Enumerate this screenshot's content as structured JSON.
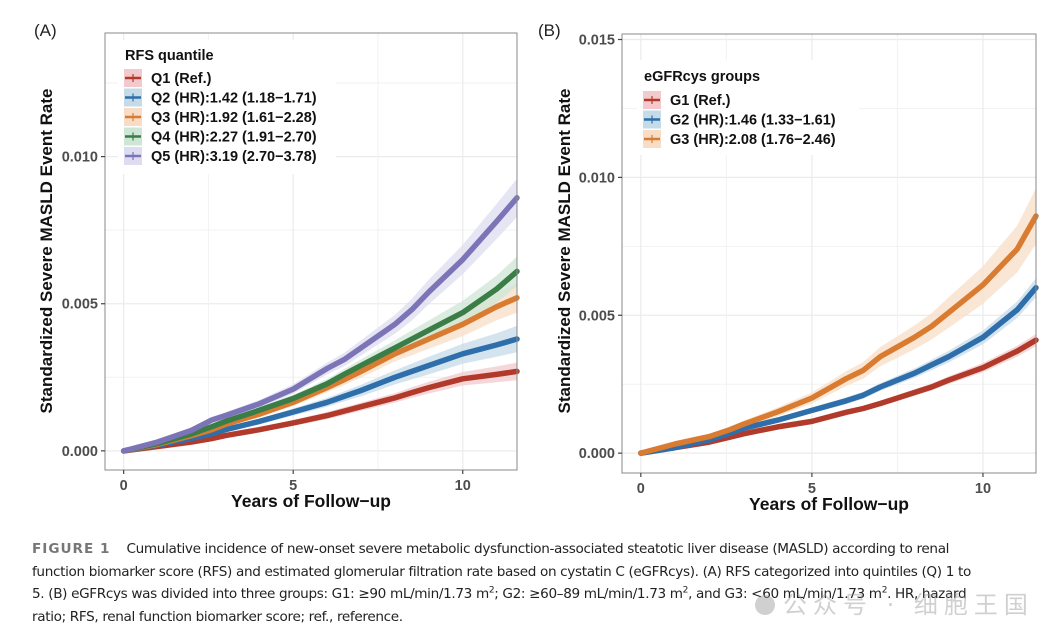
{
  "figure": {
    "caption": {
      "label": "FIGURE 1",
      "line1": "Cumulative incidence of new-onset severe metabolic dysfunction-associated steatotic liver disease (MASLD) according to renal",
      "line2": "function biomarker score (RFS) and estimated glomerular filtration rate based on cystatin C (eGFRcys). (A) RFS categorized into quintiles (Q) 1 to",
      "line3a": "5. (B) eGFRcys was divided into three groups: G1: ≥90 mL/min/1.73 m",
      "line3b": "; G2: ≥60–89 mL/min/1.73 m",
      "line3c": ", and G3: <60 mL/min/1.73 m",
      "line3d": ". HR, hazard",
      "sup": "2",
      "line4": "ratio; RFS, renal function biomarker score; ref., reference."
    },
    "watermark": "公众号 · 细胞王国"
  },
  "chart_data": [
    {
      "panel": "(A)",
      "type": "line",
      "title": "",
      "xlabel": "Years of Follow−up",
      "ylabel": "Standardized Severe MASLD Event Rate",
      "xlim": [
        -0.55,
        11.6
      ],
      "ylim": [
        -0.00065,
        0.0142
      ],
      "xticks": [
        0,
        5,
        10
      ],
      "xtick_labels": [
        "0",
        "5",
        "10"
      ],
      "yticks": [
        0.0,
        0.005,
        0.01
      ],
      "ytick_labels": [
        "0.000",
        "0.005",
        "0.010"
      ],
      "grid": true,
      "legend": {
        "title": "RFS quantile",
        "position": "top-left"
      },
      "x": [
        0,
        1,
        2,
        2.6,
        3,
        4,
        5,
        6,
        6.5,
        7,
        8,
        8.5,
        9,
        10,
        11,
        11.6
      ],
      "series": [
        {
          "name": "Q1 (Ref.)",
          "color": "#B23A2B",
          "band": "#F2C9CC",
          "values": [
            0,
            0.00015,
            0.0003,
            0.00042,
            0.00052,
            0.00072,
            0.00095,
            0.0012,
            0.00135,
            0.0015,
            0.0018,
            0.00198,
            0.00215,
            0.00245,
            0.0026,
            0.0027
          ],
          "ci_halfwidth": [
            0,
            3e-05,
            5e-05,
            6e-05,
            7e-05,
            9e-05,
            0.0001,
            0.00012,
            0.00013,
            0.00014,
            0.00016,
            0.00018,
            0.0002,
            0.00023,
            0.00027,
            0.0003
          ]
        },
        {
          "name": "Q2 (HR):1.42 (1.18−1.71)",
          "color": "#2E6EAA",
          "band": "#C6DBE8",
          "values": [
            0,
            0.0002,
            0.00042,
            0.00058,
            0.00072,
            0.001,
            0.00132,
            0.00165,
            0.00185,
            0.00205,
            0.0025,
            0.0027,
            0.0029,
            0.0033,
            0.0036,
            0.0038
          ],
          "ci_halfwidth": [
            0,
            4e-05,
            6e-05,
            7e-05,
            8e-05,
            0.0001,
            0.00012,
            0.00015,
            0.00017,
            0.0002,
            0.00024,
            0.00027,
            0.0003,
            0.00034,
            0.0004,
            0.00045
          ]
        },
        {
          "name": "Q3 (HR):1.92 (1.61−2.28)",
          "color": "#D97B30",
          "band": "#F8DDC6",
          "values": [
            0,
            0.00022,
            0.00052,
            0.00072,
            0.0009,
            0.00125,
            0.00165,
            0.00215,
            0.00242,
            0.0027,
            0.0033,
            0.00355,
            0.0038,
            0.0043,
            0.0049,
            0.0052
          ],
          "ci_halfwidth": [
            0,
            4e-05,
            6e-05,
            8e-05,
            9e-05,
            0.00011,
            0.00013,
            0.00016,
            0.00018,
            0.00021,
            0.00026,
            0.0003,
            0.00033,
            0.0004,
            0.00046,
            0.0005
          ]
        },
        {
          "name": "Q4 (HR):2.27 (1.91−2.70)",
          "color": "#3A7D46",
          "band": "#CDE6D6",
          "values": [
            0,
            0.00025,
            0.00058,
            0.00082,
            0.001,
            0.00138,
            0.00178,
            0.00228,
            0.0026,
            0.0029,
            0.0035,
            0.0038,
            0.0041,
            0.0047,
            0.0055,
            0.0061
          ],
          "ci_halfwidth": [
            0,
            4e-05,
            6e-05,
            8e-05,
            9e-05,
            0.00011,
            0.00013,
            0.00016,
            0.00018,
            0.00021,
            0.00026,
            0.0003,
            0.00033,
            0.0004,
            0.00046,
            0.0005
          ]
        },
        {
          "name": "Q5 (HR):3.19 (2.70−3.78)",
          "color": "#7B74B6",
          "band": "#DEDCF0",
          "values": [
            0,
            0.0003,
            0.0007,
            0.00105,
            0.0012,
            0.0016,
            0.0021,
            0.0028,
            0.0031,
            0.0035,
            0.0043,
            0.0048,
            0.0054,
            0.0065,
            0.0078,
            0.0086
          ],
          "ci_halfwidth": [
            0,
            5e-05,
            8e-05,
            0.0001,
            0.00011,
            0.00013,
            0.00016,
            0.0002,
            0.00023,
            0.00026,
            0.00032,
            0.00037,
            0.00042,
            0.0005,
            0.0006,
            0.00065
          ]
        }
      ]
    },
    {
      "panel": "(B)",
      "type": "line",
      "title": "",
      "xlabel": "Years of Follow−up",
      "ylabel": "Standardized Severe MASLD Event Rate",
      "xlim": [
        -0.55,
        11.55
      ],
      "ylim": [
        -0.00072,
        0.0152
      ],
      "xticks": [
        0,
        5,
        10
      ],
      "xtick_labels": [
        "0",
        "5",
        "10"
      ],
      "yticks": [
        0.0,
        0.005,
        0.01,
        0.015
      ],
      "ytick_labels": [
        "0.000",
        "0.005",
        "0.010",
        "0.015"
      ],
      "grid": true,
      "legend": {
        "title": "eGFRcys  groups",
        "position": "top-left"
      },
      "x": [
        0,
        1,
        2,
        2.6,
        3,
        4,
        5,
        6,
        6.5,
        7,
        8,
        8.5,
        9,
        10,
        11,
        11.55
      ],
      "series": [
        {
          "name": "G1 (Ref.)",
          "color": "#B23A2B",
          "band": "#F2C9CC",
          "values": [
            0,
            0.0002,
            0.0004,
            0.00058,
            0.0007,
            0.00095,
            0.00115,
            0.00148,
            0.00162,
            0.0018,
            0.0022,
            0.0024,
            0.00265,
            0.0031,
            0.0037,
            0.0041
          ],
          "ci_halfwidth": [
            0,
            3e-05,
            4e-05,
            5e-05,
            5e-05,
            6e-05,
            7e-05,
            8e-05,
            9e-05,
            0.0001,
            0.00012,
            0.00013,
            0.00014,
            0.00017,
            0.0002,
            0.00022
          ]
        },
        {
          "name": "G2 (HR):1.46 (1.33−1.61)",
          "color": "#2E6EAA",
          "band": "#C6DBE8",
          "values": [
            0,
            0.0002,
            0.00048,
            0.00072,
            0.0009,
            0.0012,
            0.00155,
            0.0019,
            0.0021,
            0.0024,
            0.0029,
            0.0032,
            0.0035,
            0.0042,
            0.0052,
            0.006
          ],
          "ci_halfwidth": [
            0,
            3e-05,
            5e-05,
            6e-05,
            7e-05,
            8e-05,
            0.0001,
            0.00012,
            0.00013,
            0.00014,
            0.00017,
            0.00019,
            0.00021,
            0.00025,
            0.0003,
            0.00034
          ]
        },
        {
          "name": "G3 (HR):2.08 (1.76−2.46)",
          "color": "#D97B30",
          "band": "#F8DDC6",
          "values": [
            0,
            0.00033,
            0.0006,
            0.00085,
            0.00105,
            0.0015,
            0.002,
            0.0027,
            0.003,
            0.0035,
            0.0042,
            0.0046,
            0.0051,
            0.0061,
            0.0074,
            0.0086
          ],
          "ci_halfwidth": [
            0,
            5e-05,
            8e-05,
            0.0001,
            0.00012,
            0.00016,
            0.0002,
            0.00027,
            0.0003,
            0.00035,
            0.00043,
            0.00048,
            0.00055,
            0.00068,
            0.00085,
            0.001
          ]
        }
      ]
    }
  ]
}
